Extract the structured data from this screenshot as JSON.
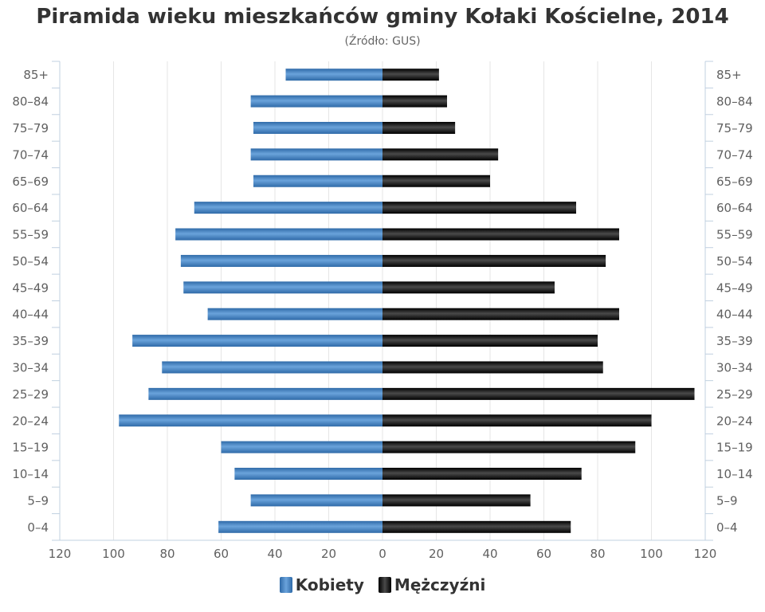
{
  "title": "Piramida wieku mieszkańców gminy Kołaki Kościelne, 2014",
  "subtitle": "(Źródło: GUS)",
  "chart_data": {
    "type": "bar",
    "orientation": "horizontal-pyramid",
    "title": "Piramida wieku mieszkańców gminy Kołaki Kościelne, 2014",
    "subtitle": "(Źródło: GUS)",
    "categories": [
      "85+",
      "80–84",
      "75–79",
      "70–74",
      "65–69",
      "60–64",
      "55–59",
      "50–54",
      "45–49",
      "40–44",
      "35–39",
      "30–34",
      "25–29",
      "20–24",
      "15–19",
      "10–14",
      "5–9",
      "0–4"
    ],
    "series": [
      {
        "name": "Kobiety",
        "side": "left",
        "color": "#4a86c5",
        "values": [
          36,
          49,
          48,
          49,
          48,
          70,
          77,
          75,
          74,
          65,
          93,
          82,
          87,
          98,
          60,
          55,
          49,
          61
        ]
      },
      {
        "name": "Mężczyźni",
        "side": "right",
        "color": "#1a1a1a",
        "values": [
          21,
          24,
          27,
          43,
          40,
          72,
          88,
          83,
          64,
          88,
          80,
          82,
          116,
          100,
          94,
          74,
          55,
          70
        ]
      }
    ],
    "x_ticks": [
      120,
      100,
      80,
      60,
      40,
      20,
      0,
      20,
      40,
      60,
      80,
      100,
      120
    ],
    "xlim": [
      -120,
      120
    ],
    "grid": "vertical",
    "legend_position": "bottom-center"
  }
}
